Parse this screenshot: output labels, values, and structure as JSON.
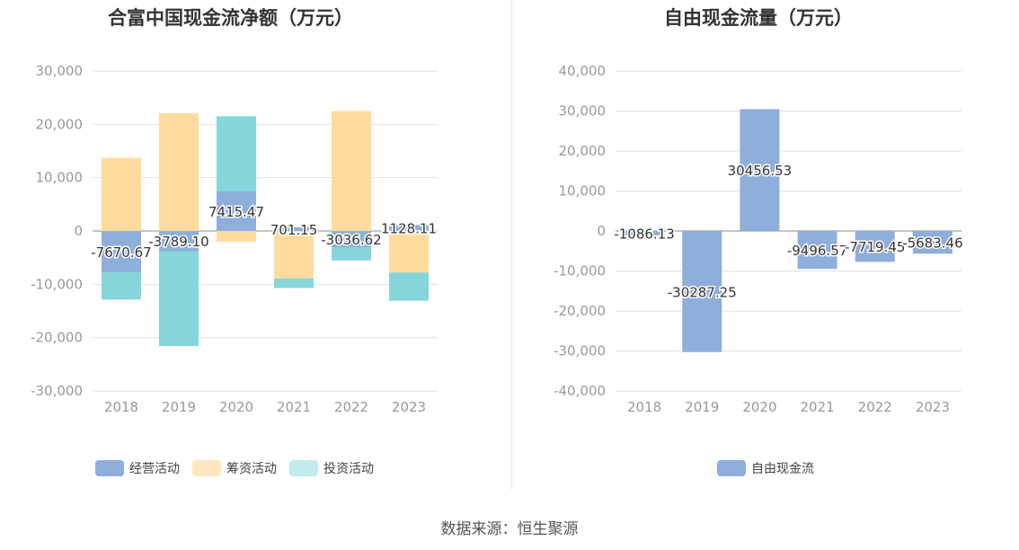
{
  "source": "数据来源：恒生聚源",
  "chart_data": [
    {
      "type": "bar",
      "stacked": true,
      "title": "合富中国现金流净额（万元）",
      "categories": [
        "2018",
        "2019",
        "2020",
        "2021",
        "2022",
        "2023"
      ],
      "ylim": [
        -30000,
        30000
      ],
      "yticks": [
        "30,000",
        "20,000",
        "10,000",
        "0",
        "-10,000",
        "-20,000",
        "-30,000"
      ],
      "series": [
        {
          "name": "经营活动",
          "color": "#8eaedb",
          "values": [
            -7670.67,
            -3789.1,
            7415.47,
            701.15,
            -3036.62,
            1128.11
          ]
        },
        {
          "name": "筹资活动",
          "color": "#ffdb9e",
          "values": [
            13700,
            22100,
            -2000,
            -8900,
            22500,
            -7800
          ]
        },
        {
          "name": "投资活动",
          "color": "#86d5da",
          "values": [
            -5200,
            -17800,
            14100,
            -1800,
            -2500,
            -5300
          ]
        }
      ],
      "labels": [
        "-7670.67",
        "-3789.10",
        "7415.47",
        "701.15",
        "-3036.62",
        "1128.11"
      ]
    },
    {
      "type": "bar",
      "title": "自由现金流量（万元）",
      "categories": [
        "2018",
        "2019",
        "2020",
        "2021",
        "2022",
        "2023"
      ],
      "ylim": [
        -40000,
        40000
      ],
      "yticks": [
        "40,000",
        "30,000",
        "20,000",
        "10,000",
        "0",
        "-10,000",
        "-20,000",
        "-30,000",
        "-40,000"
      ],
      "series": [
        {
          "name": "自由现金流",
          "color": "#8eaedb",
          "values": [
            -1086.13,
            -30287.25,
            30456.53,
            -9496.57,
            -7719.45,
            -5683.46
          ]
        }
      ],
      "labels": [
        "-1086.13",
        "-30287.25",
        "30456.53",
        "-9496.57",
        "-7719.45",
        "-5683.46"
      ]
    }
  ]
}
